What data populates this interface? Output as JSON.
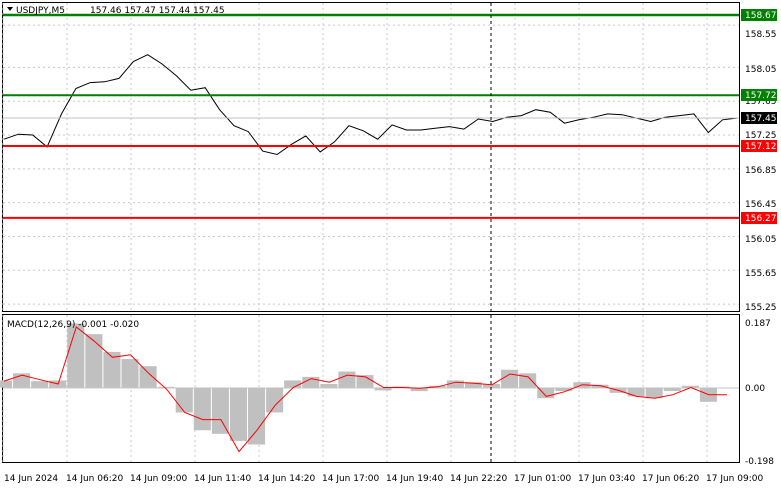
{
  "header": {
    "symbol_label": "USDJPY,M5",
    "ohlc_label": "157.46 157.47 157.44 157.45"
  },
  "price_axis": {
    "ticks": [
      "158.55",
      "158.05",
      "157.65",
      "157.25",
      "156.85",
      "156.45",
      "156.05",
      "155.65",
      "155.25"
    ]
  },
  "levels": [
    {
      "label": "158.67",
      "value": 158.67,
      "color": "#008000"
    },
    {
      "label": "157.72",
      "value": 157.72,
      "color": "#008000"
    },
    {
      "label": "157.45",
      "value": 157.45,
      "color": "#000000"
    },
    {
      "label": "157.12",
      "value": 157.12,
      "color": "#ff0000"
    },
    {
      "label": "156.27",
      "value": 156.27,
      "color": "#ff0000"
    }
  ],
  "macd": {
    "label": "MACD(12,26,9) -0.001 -0.020",
    "ticks": [
      "0.187",
      "0.00",
      "-0.198"
    ]
  },
  "time_axis": {
    "labels": [
      "14 Jun 2024",
      "14 Jun 06:20",
      "14 Jun 09:00",
      "14 Jun 11:40",
      "14 Jun 14:20",
      "14 Jun 17:00",
      "14 Jun 19:40",
      "14 Jun 22:20",
      "17 Jun 01:00",
      "17 Jun 03:40",
      "17 Jun 06:20",
      "17 Jun 09:00"
    ]
  },
  "colors": {
    "price_line": "#000000",
    "histogram": "#c0c0c0",
    "signal_line": "#ff0000",
    "grid": "#c8c8c8",
    "support": "#ff0000",
    "resistance": "#008000"
  },
  "chart_data": [
    {
      "type": "line",
      "name": "USDJPY M5 close",
      "x": [
        "14 Jun 04:30",
        "14 Jun 05:10",
        "14 Jun 05:50",
        "14 Jun 06:10",
        "14 Jun 06:30",
        "14 Jun 07:00",
        "14 Jun 07:30",
        "14 Jun 08:00",
        "14 Jun 08:20",
        "14 Jun 08:40",
        "14 Jun 09:00",
        "14 Jun 09:20",
        "14 Jun 09:40",
        "14 Jun 10:00",
        "14 Jun 10:20",
        "14 Jun 10:40",
        "14 Jun 11:00",
        "14 Jun 11:20",
        "14 Jun 11:40",
        "14 Jun 12:10",
        "14 Jun 12:40",
        "14 Jun 13:10",
        "14 Jun 13:40",
        "14 Jun 14:10",
        "14 Jun 14:30",
        "14 Jun 15:10",
        "14 Jun 15:50",
        "14 Jun 16:30",
        "14 Jun 17:10",
        "14 Jun 17:50",
        "14 Jun 18:40",
        "14 Jun 19:40",
        "14 Jun 20:40",
        "14 Jun 21:40",
        "14 Jun 22:20",
        "14 Jun 23:10",
        "17 Jun 00:00",
        "17 Jun 00:40",
        "17 Jun 01:20",
        "17 Jun 02:00",
        "17 Jun 02:40",
        "17 Jun 03:20",
        "17 Jun 04:00",
        "17 Jun 04:40",
        "17 Jun 05:20",
        "17 Jun 06:00",
        "17 Jun 06:40",
        "17 Jun 07:20",
        "17 Jun 07:50",
        "17 Jun 08:10",
        "17 Jun 08:40",
        "17 Jun 09:00"
      ],
      "y": [
        157.2,
        157.26,
        157.25,
        157.11,
        157.5,
        157.8,
        157.87,
        157.88,
        157.92,
        158.12,
        158.2,
        158.09,
        157.95,
        157.78,
        157.81,
        157.55,
        157.36,
        157.29,
        157.06,
        157.02,
        157.14,
        157.24,
        157.05,
        157.17,
        157.36,
        157.3,
        157.2,
        157.37,
        157.31,
        157.31,
        157.33,
        157.35,
        157.32,
        157.44,
        157.41,
        157.46,
        157.48,
        157.55,
        157.52,
        157.39,
        157.43,
        157.46,
        157.5,
        157.49,
        157.45,
        157.41,
        157.46,
        157.48,
        157.5,
        157.28,
        157.43,
        157.45
      ],
      "ylim": [
        155.18,
        158.8
      ]
    },
    {
      "type": "bar",
      "name": "MACD(12,26,9)",
      "x": [
        "14 Jun 2024",
        "14 Jun 05:10",
        "14 Jun 05:50",
        "14 Jun 06:20",
        "14 Jun 07:00",
        "14 Jun 07:40",
        "14 Jun 08:20",
        "14 Jun 09:00",
        "14 Jun 09:40",
        "14 Jun 10:20",
        "14 Jun 11:00",
        "14 Jun 11:40",
        "14 Jun 12:20",
        "14 Jun 13:00",
        "14 Jun 13:40",
        "14 Jun 14:20",
        "14 Jun 15:00",
        "14 Jun 15:40",
        "14 Jun 16:20",
        "14 Jun 17:00",
        "14 Jun 17:40",
        "14 Jun 18:40",
        "14 Jun 19:40",
        "14 Jun 20:40",
        "14 Jun 21:40",
        "14 Jun 22:20",
        "14 Jun 23:20",
        "17 Jun 00:20",
        "17 Jun 01:00",
        "17 Jun 01:40",
        "17 Jun 02:20",
        "17 Jun 03:00",
        "17 Jun 03:40",
        "17 Jun 04:20",
        "17 Jun 05:00",
        "17 Jun 05:40",
        "17 Jun 06:20",
        "17 Jun 07:00",
        "17 Jun 07:40",
        "17 Jun 08:20",
        "17 Jun 09:00"
      ],
      "values": [
        0.02,
        0.04,
        0.018,
        0.02,
        0.18,
        0.15,
        0.1,
        0.08,
        0.06,
        0.002,
        -0.07,
        -0.12,
        -0.13,
        -0.15,
        -0.16,
        -0.07,
        0.02,
        0.03,
        0.01,
        0.045,
        0.035,
        -0.008,
        0.003,
        -0.01,
        0.005,
        0.02,
        0.015,
        0.01,
        0.05,
        0.04,
        -0.03,
        -0.01,
        0.015,
        0.008,
        -0.015,
        -0.025,
        -0.03,
        -0.01,
        0.005,
        -0.04,
        -0.001
      ],
      "ylim": [
        -0.198,
        0.187
      ]
    },
    {
      "type": "line",
      "name": "Signal",
      "x": [
        "14 Jun 2024",
        "14 Jun 05:10",
        "14 Jun 05:50",
        "14 Jun 06:20",
        "14 Jun 07:00",
        "14 Jun 07:40",
        "14 Jun 08:20",
        "14 Jun 09:00",
        "14 Jun 09:40",
        "14 Jun 10:20",
        "14 Jun 11:00",
        "14 Jun 11:40",
        "14 Jun 12:20",
        "14 Jun 13:00",
        "14 Jun 13:40",
        "14 Jun 14:20",
        "14 Jun 15:00",
        "14 Jun 15:40",
        "14 Jun 16:20",
        "14 Jun 17:00",
        "14 Jun 17:40",
        "14 Jun 18:40",
        "14 Jun 19:40",
        "14 Jun 20:40",
        "14 Jun 21:40",
        "14 Jun 22:20",
        "14 Jun 23:20",
        "17 Jun 00:20",
        "17 Jun 01:00",
        "17 Jun 01:40",
        "17 Jun 02:20",
        "17 Jun 03:00",
        "17 Jun 03:40",
        "17 Jun 04:20",
        "17 Jun 05:00",
        "17 Jun 05:40",
        "17 Jun 06:20",
        "17 Jun 07:00",
        "17 Jun 07:40",
        "17 Jun 08:20",
        "17 Jun 09:00"
      ],
      "values": [
        0.018,
        0.035,
        0.022,
        0.01,
        0.17,
        0.13,
        0.085,
        0.092,
        0.04,
        -0.005,
        -0.07,
        -0.09,
        -0.09,
        -0.18,
        -0.12,
        -0.05,
        0.0,
        0.025,
        0.015,
        0.035,
        0.03,
        0.0,
        0.0,
        -0.002,
        0.002,
        0.015,
        0.012,
        0.008,
        0.038,
        0.03,
        -0.025,
        -0.012,
        0.008,
        0.005,
        -0.008,
        -0.025,
        -0.03,
        -0.02,
        0.0,
        -0.02,
        -0.02
      ],
      "ylim": [
        -0.198,
        0.187
      ]
    }
  ]
}
